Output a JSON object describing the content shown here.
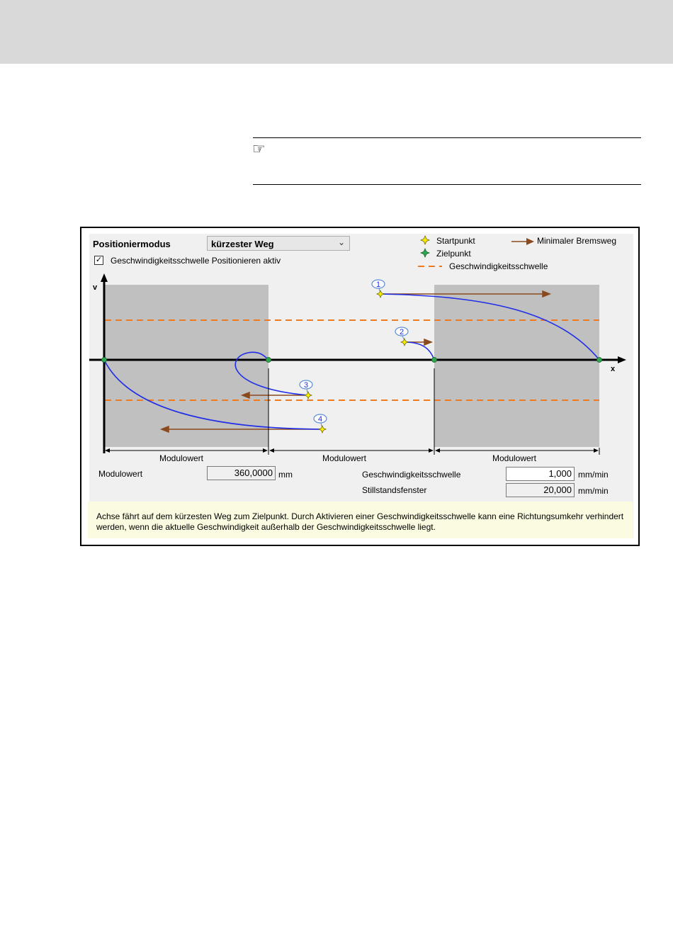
{
  "note_icon_glyph": "☞",
  "form": {
    "mode_label": "Positioniermodus",
    "mode_value": "kürzester Weg",
    "checkbox_label": "Geschwindigkeitsschwelle Positionieren aktiv",
    "checkbox_checked": true,
    "modulo_label": "Modulowert",
    "modulo_value": "360,0000",
    "modulo_unit": "mm",
    "threshold_label": "Geschwindigkeitsschwelle",
    "threshold_value": "1,000",
    "threshold_unit": "mm/min",
    "standstill_label": "Stillstandsfenster",
    "standstill_value": "20,000",
    "standstill_unit": "mm/min"
  },
  "legend": {
    "start": "Startpunkt",
    "target": "Zielpunkt",
    "brake": "Minimaler Bremsweg",
    "threshold": "Geschwindigkeitsschwelle"
  },
  "diagram": {
    "v_axis_label": "v",
    "x_axis_label": "x",
    "segment_labels": [
      "Modulowert",
      "Modulowert",
      "Modulowert"
    ],
    "markers": [
      "1",
      "2",
      "3",
      "4"
    ],
    "colors": {
      "curve": "#1f2de8",
      "threshold": "#ee7a22",
      "brake_arrow": "#8b4a1e",
      "shade": "#c0c0c0",
      "start_point": "#ffee00",
      "target_point": "#2fa84f"
    }
  },
  "info_text": "Achse fährt auf dem kürzesten Weg zum Zielpunkt. Durch Aktivieren einer Geschwindigkeitsschwelle kann eine Richtungsumkehr verhindert werden, wenn die aktuelle Geschwindigkeit außerhalb der Geschwindigkeitsschwelle liegt."
}
